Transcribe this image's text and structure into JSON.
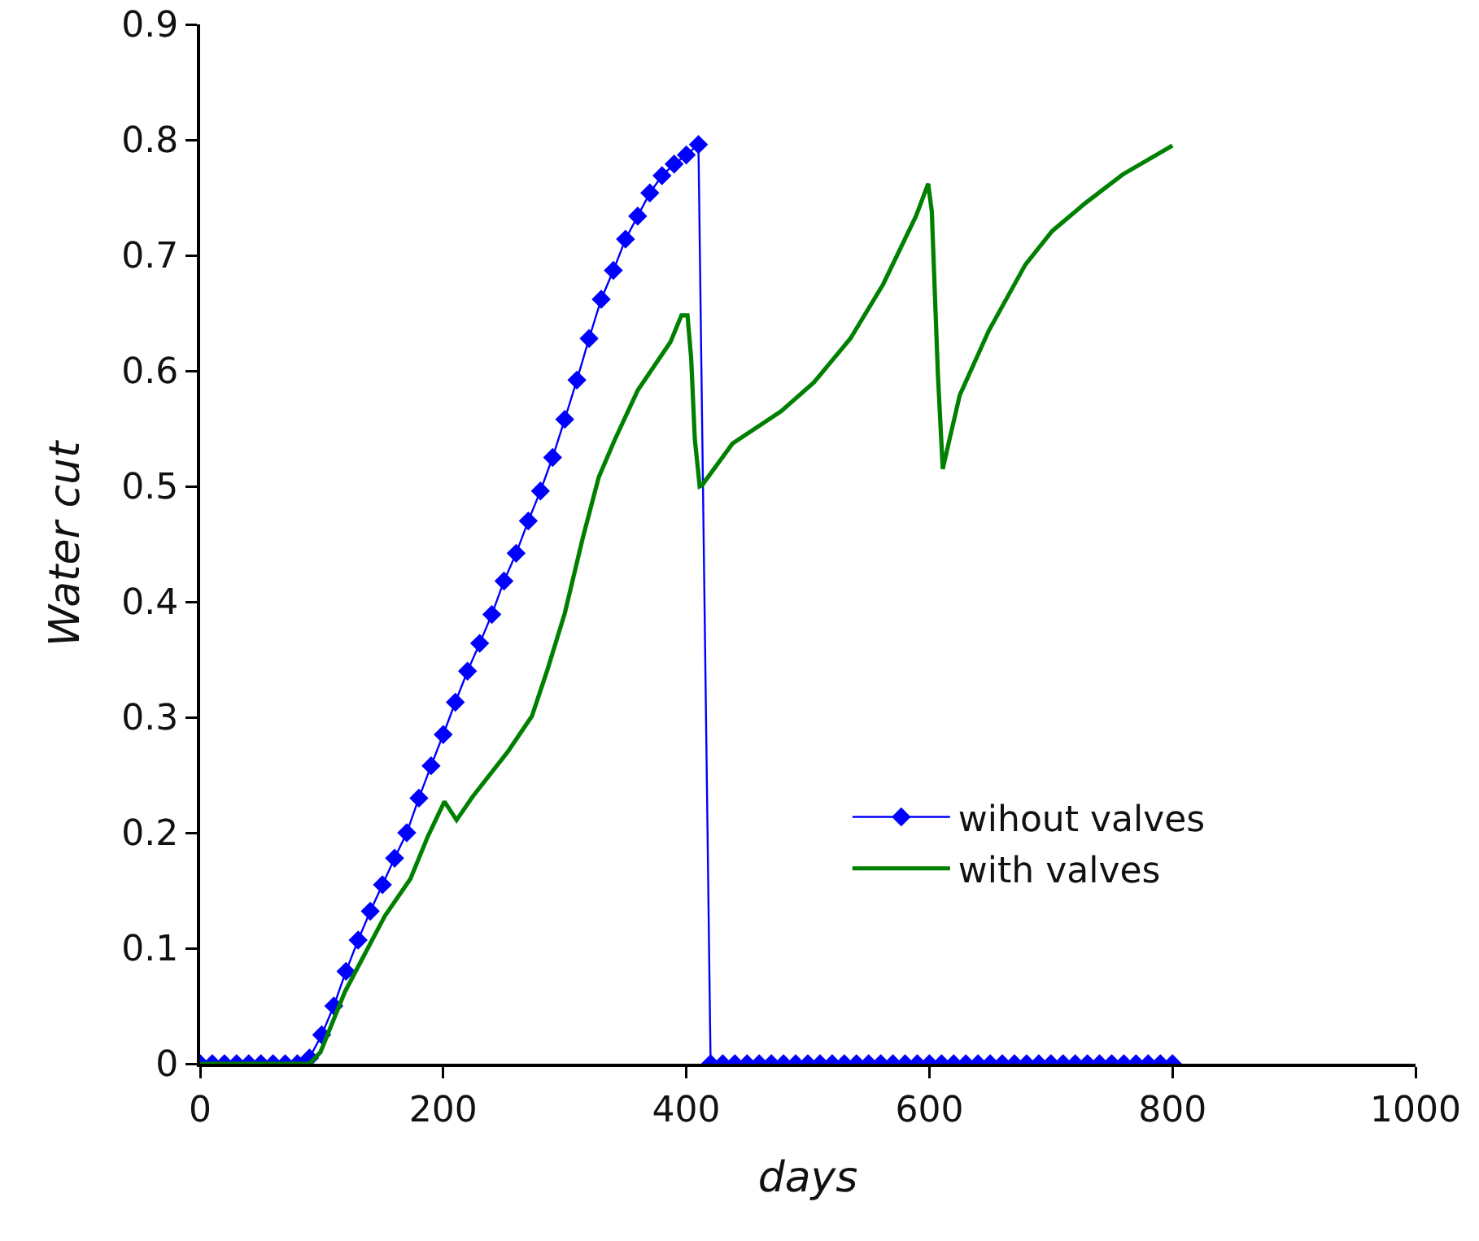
{
  "chart_data": {
    "type": "line",
    "xlabel": "days",
    "ylabel": "Water cut",
    "xlim": [
      0,
      1000
    ],
    "xticks": [
      0,
      200,
      400,
      600,
      800,
      1000
    ],
    "ylim": [
      0,
      0.9
    ],
    "yticks": [
      0,
      0.1,
      0.2,
      0.3,
      0.4,
      0.5,
      0.6,
      0.7,
      0.8,
      0.9
    ],
    "grid": false,
    "legend": "bottom right",
    "marker": "diamond",
    "line_style": "solid",
    "series": [
      {
        "name": "wihout valves",
        "color": "#0000ff",
        "x": [
          0,
          10,
          20,
          30,
          40,
          50,
          60,
          70,
          80,
          90,
          100,
          110,
          120,
          130,
          140,
          150,
          160,
          170,
          180,
          190,
          200,
          210,
          220,
          230,
          240,
          250,
          260,
          270,
          280,
          290,
          300,
          310,
          320,
          330,
          340,
          350,
          360,
          370,
          380,
          390,
          400,
          410,
          420,
          430,
          440,
          450,
          460,
          470,
          480,
          490,
          500,
          510,
          520,
          530,
          540,
          550,
          560,
          570,
          580,
          590,
          600,
          610,
          620,
          630,
          640,
          650,
          660,
          670,
          680,
          690,
          700,
          710,
          720,
          730,
          740,
          750,
          760,
          770,
          780,
          790,
          800
        ],
        "values": [
          0,
          0,
          0,
          0,
          0,
          0,
          0,
          0,
          0,
          0.005,
          0.025,
          0.05,
          0.08,
          0.107,
          0.132,
          0.155,
          0.178,
          0.2,
          0.23,
          0.258,
          0.285,
          0.313,
          0.34,
          0.364,
          0.389,
          0.418,
          0.442,
          0.47,
          0.496,
          0.525,
          0.558,
          0.592,
          0.628,
          0.662,
          0.687,
          0.714,
          0.734,
          0.754,
          0.769,
          0.779,
          0.787,
          0.796,
          0,
          0,
          0,
          0,
          0,
          0,
          0,
          0,
          0,
          0,
          0,
          0,
          0,
          0,
          0,
          0,
          0,
          0,
          0,
          0,
          0,
          0,
          0,
          0,
          0,
          0,
          0,
          0,
          0,
          0,
          0,
          0,
          0,
          0,
          0,
          0,
          0,
          0,
          0
        ]
      },
      {
        "name": "with valves",
        "color": "#008000",
        "marker": "none",
        "x": [
          0,
          90,
          99,
          119,
          140,
          152,
          173,
          187,
          201,
          211,
          224,
          253,
          273,
          286,
          300,
          315,
          328,
          341,
          360,
          387,
          396,
          401,
          404,
          407,
          411,
          413,
          438,
          478,
          505,
          535,
          562,
          589,
          599,
          602,
          607,
          611,
          616,
          625,
          649,
          679,
          701,
          728,
          759,
          800
        ],
        "values": [
          0,
          0,
          0.01,
          0.062,
          0.104,
          0.128,
          0.16,
          0.196,
          0.227,
          0.211,
          0.231,
          0.27,
          0.301,
          0.342,
          0.39,
          0.456,
          0.508,
          0.54,
          0.583,
          0.625,
          0.648,
          0.648,
          0.611,
          0.541,
          0.5,
          0.501,
          0.537,
          0.565,
          0.59,
          0.628,
          0.675,
          0.734,
          0.762,
          0.738,
          0.597,
          0.515,
          0.538,
          0.579,
          0.635,
          0.692,
          0.721,
          0.745,
          0.77,
          0.795
        ]
      }
    ]
  }
}
